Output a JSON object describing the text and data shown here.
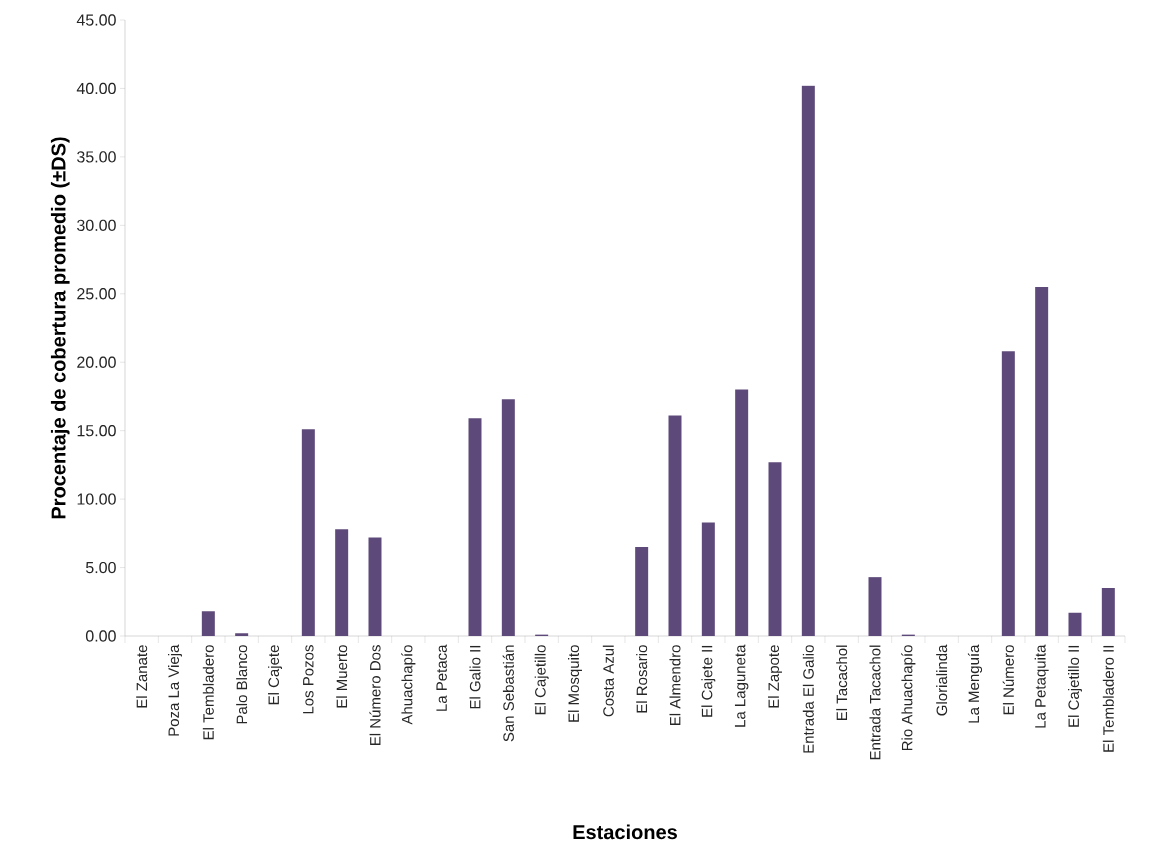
{
  "chart_data": {
    "type": "bar",
    "xlabel": "Estaciones",
    "ylabel": "Procentaje de cobertura promedio (±DS)",
    "categories": [
      "El Zanate",
      "Poza La Vieja",
      "El Tembladero",
      "Palo Blanco",
      "El Cajete",
      "Los Pozos",
      "El Muerto",
      "El Número Dos",
      "Ahuachapío",
      "La Petaca",
      "El Galio II",
      "San Sebastián",
      "El Cajetillo",
      "El Mosquito",
      "Costa Azul",
      "El Rosario",
      "El Almendro",
      "El Cajete II",
      "La Laguneta",
      "El Zapote",
      "Entrada El Galio",
      "El Tacachol",
      "Entrada Tacachol",
      "Rio Ahuachapío",
      "Glorialinda",
      "La Menguía",
      "El Número",
      "La Petaquita",
      "El Cajetillo II",
      "El Tembladero II"
    ],
    "values": [
      0,
      0,
      1.8,
      0.2,
      0,
      15.1,
      7.8,
      7.2,
      0,
      0,
      15.9,
      17.3,
      0.1,
      0,
      0,
      6.5,
      16.1,
      8.3,
      18.0,
      12.7,
      40.2,
      0,
      4.3,
      0.1,
      0,
      0,
      20.8,
      25.5,
      1.7,
      3.5
    ],
    "color": "#5e4a7a",
    "ylim": [
      0,
      45
    ],
    "yticks": [
      {
        "value": 0,
        "label": "0.00"
      },
      {
        "value": 5,
        "label": "5.00"
      },
      {
        "value": 10,
        "label": "10.00"
      },
      {
        "value": 15,
        "label": "15.00"
      },
      {
        "value": 20,
        "label": "20.00"
      },
      {
        "value": 25,
        "label": "25.00"
      },
      {
        "value": 30,
        "label": "30.00"
      },
      {
        "value": 35,
        "label": "35.00"
      },
      {
        "value": 40,
        "label": "40.00"
      },
      {
        "value": 45,
        "label": "45.00"
      }
    ],
    "grid": false
  }
}
